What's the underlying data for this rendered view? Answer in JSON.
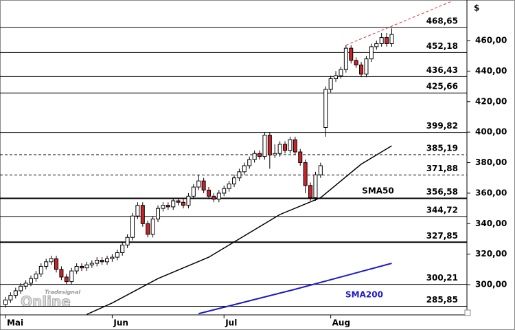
{
  "chart_data": {
    "type": "candlestick",
    "unit_label": "$",
    "watermark": [
      "Tradesignal",
      "Online"
    ],
    "xlim": [
      -1.08,
      90.8
    ],
    "xticks": [
      {
        "value": 0,
        "label": "Mai"
      },
      {
        "value": 21,
        "label": "Jun"
      },
      {
        "value": 43,
        "label": "Jul"
      },
      {
        "value": 64,
        "label": "Aug"
      }
    ],
    "ylim": [
      280.2,
      486.6
    ],
    "yticks": [
      {
        "value": 300,
        "label": "300,00"
      },
      {
        "value": 320,
        "label": "320,00"
      },
      {
        "value": 340,
        "label": "340,00"
      },
      {
        "value": 360,
        "label": "360,00"
      },
      {
        "value": 380,
        "label": "380,00"
      },
      {
        "value": 400,
        "label": "400,00"
      },
      {
        "value": 420,
        "label": "420,00"
      },
      {
        "value": 440,
        "label": "440,00"
      },
      {
        "value": 460,
        "label": "460,00"
      }
    ],
    "up_color": "#ffffff",
    "down_color": "#cc2229",
    "ohlc": [
      [
        287,
        292,
        285,
        290
      ],
      [
        290,
        295,
        288,
        293
      ],
      [
        293,
        298,
        291,
        296
      ],
      [
        296,
        301,
        294,
        299
      ],
      [
        299,
        303,
        297,
        301
      ],
      [
        301,
        306,
        299,
        304
      ],
      [
        304,
        309,
        302,
        307
      ],
      [
        307,
        314,
        305,
        312
      ],
      [
        312,
        317,
        310,
        315
      ],
      [
        315,
        319,
        313,
        317
      ],
      [
        317,
        319,
        308,
        310
      ],
      [
        310,
        312,
        303,
        305
      ],
      [
        305,
        307,
        300,
        302
      ],
      [
        302,
        311,
        300,
        309
      ],
      [
        309,
        314,
        307,
        312
      ],
      [
        312,
        314,
        309,
        311
      ],
      [
        311,
        315,
        309,
        313
      ],
      [
        313,
        316,
        311,
        314
      ],
      [
        314,
        318,
        312,
        316
      ],
      [
        316,
        318,
        313,
        315
      ],
      [
        315,
        319,
        313,
        317
      ],
      [
        317,
        320,
        315,
        318
      ],
      [
        318,
        323,
        316,
        321
      ],
      [
        321,
        328,
        319,
        326
      ],
      [
        326,
        333,
        324,
        331
      ],
      [
        331,
        347,
        329,
        345
      ],
      [
        345,
        354,
        343,
        352
      ],
      [
        352,
        354,
        338,
        340
      ],
      [
        340,
        342,
        331,
        333
      ],
      [
        333,
        345,
        331,
        343
      ],
      [
        343,
        352,
        341,
        350
      ],
      [
        350,
        354,
        348,
        352
      ],
      [
        352,
        354,
        349,
        351
      ],
      [
        351,
        357,
        349,
        355
      ],
      [
        355,
        357,
        352,
        354
      ],
      [
        354,
        356,
        350,
        352
      ],
      [
        352,
        360,
        350,
        358
      ],
      [
        358,
        366,
        356,
        364
      ],
      [
        364,
        372,
        362,
        368
      ],
      [
        368,
        370,
        360,
        362
      ],
      [
        362,
        364,
        356,
        358
      ],
      [
        358,
        360,
        354,
        356
      ],
      [
        356,
        362,
        354,
        360
      ],
      [
        360,
        365,
        358,
        363
      ],
      [
        363,
        368,
        361,
        366
      ],
      [
        366,
        372,
        364,
        370
      ],
      [
        370,
        376,
        368,
        374
      ],
      [
        374,
        380,
        372,
        378
      ],
      [
        378,
        384,
        376,
        382
      ],
      [
        382,
        388,
        380,
        386
      ],
      [
        386,
        388,
        382,
        384
      ],
      [
        384,
        400,
        382,
        398
      ],
      [
        398,
        400,
        376,
        385
      ],
      [
        385,
        392,
        383,
        386
      ],
      [
        386,
        394,
        384,
        392
      ],
      [
        392,
        394,
        386,
        388
      ],
      [
        388,
        397,
        386,
        395
      ],
      [
        395,
        397,
        385,
        387
      ],
      [
        387,
        389,
        378,
        380
      ],
      [
        380,
        382,
        360,
        365
      ],
      [
        365,
        367,
        355,
        357
      ],
      [
        357,
        374,
        355,
        372
      ],
      [
        372,
        380,
        370,
        378
      ],
      [
        403,
        430,
        397,
        428
      ],
      [
        428,
        437,
        426,
        435
      ],
      [
        435,
        440,
        433,
        437
      ],
      [
        437,
        443,
        435,
        441
      ],
      [
        441,
        457,
        439,
        455
      ],
      [
        455,
        457,
        445,
        447
      ],
      [
        447,
        449,
        442,
        444
      ],
      [
        444,
        446,
        436,
        438
      ],
      [
        438,
        450,
        436,
        448
      ],
      [
        448,
        458,
        446,
        456
      ],
      [
        456,
        460,
        454,
        458
      ],
      [
        458,
        465,
        456,
        462
      ],
      [
        462,
        465,
        456,
        458
      ],
      [
        458,
        468,
        456,
        464
      ]
    ],
    "series": [
      {
        "name": "SMA50",
        "color": "#000000",
        "x": [
          16,
          21,
          30,
          40,
          46,
          54,
          62,
          70,
          76
        ],
        "values": [
          280.5,
          288,
          304,
          318,
          330,
          346,
          357,
          379,
          391
        ]
      },
      {
        "name": "SMA200",
        "color": "#1a1acc",
        "x": [
          38,
          57,
          76
        ],
        "values": [
          281,
          297,
          314
        ]
      }
    ],
    "trendline": {
      "color": "#e03030",
      "x": [
        67,
        88
      ],
      "values": [
        457,
        486
      ]
    },
    "levels": [
      {
        "value": 468.65,
        "label": "468,65",
        "style": "thin"
      },
      {
        "value": 452.18,
        "label": "452,18",
        "style": "thin"
      },
      {
        "value": 436.43,
        "label": "436,43",
        "style": "thin"
      },
      {
        "value": 425.66,
        "label": "425,66",
        "style": "thin"
      },
      {
        "value": 399.82,
        "label": "399,82",
        "style": "thin"
      },
      {
        "value": 385.19,
        "label": "385,19",
        "style": "dashed"
      },
      {
        "value": 371.88,
        "label": "371,88",
        "style": "dashed"
      },
      {
        "value": 356.58,
        "label": "356,58",
        "style": "thick"
      },
      {
        "value": 344.72,
        "label": "344,72",
        "style": "thin"
      },
      {
        "value": 327.85,
        "label": "327,85",
        "style": "thick"
      },
      {
        "value": 300.21,
        "label": "300,21",
        "style": "thin"
      },
      {
        "value": 285.85,
        "label": "285,85",
        "style": "thin"
      }
    ]
  }
}
